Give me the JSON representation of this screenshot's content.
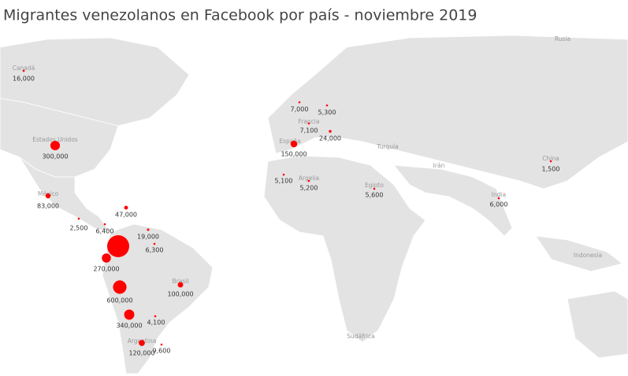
{
  "chart_data": {
    "type": "bubble-map",
    "title": "Migrantes venezolanos en Facebook por país - noviembre 2019",
    "color": "#ff0000",
    "categories": [
      "Canadá",
      "Estados Unidos",
      "México",
      null,
      null,
      null,
      null,
      null,
      null,
      null,
      null,
      "Brasil",
      null,
      null,
      "Argentina",
      null,
      "España",
      null,
      null,
      "Francia",
      null,
      null,
      "Argelia",
      "Egipto",
      "China",
      "India"
    ],
    "values": [
      16000,
      300000,
      83000,
      47000,
      2500,
      6400,
      19000,
      6300,
      1600000,
      270000,
      600000,
      100000,
      4100,
      340000,
      120000,
      9600,
      150000,
      7000,
      5300,
      7100,
      24000,
      5100,
      5200,
      5600,
      1500,
      6000
    ],
    "value_labels": [
      "16,000",
      "300,000",
      "83,000",
      "47,000",
      "2,500",
      "6,400",
      "19,000",
      "6,300",
      null,
      "270,000",
      "600,000",
      "100,000",
      "4,100",
      "340,000",
      "120,000",
      "9,600",
      "150,000",
      "7,000",
      "5,300",
      "7,100",
      "24,000",
      "5,100",
      "5,200",
      "5,600",
      "1,500",
      "6,000"
    ],
    "place_labels": [
      "Rusia",
      "Turquía",
      "Irán",
      "Indonesia",
      "Sudáfrica"
    ]
  }
}
